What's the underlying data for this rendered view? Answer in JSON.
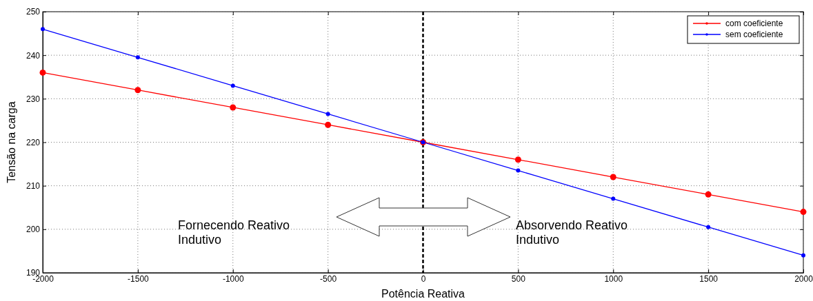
{
  "chart_data": {
    "type": "line",
    "xlabel": "Potência Reativa",
    "ylabel": "Tensão na carga",
    "x": [
      -2000,
      -1500,
      -1000,
      -500,
      0,
      500,
      1000,
      1500,
      2000
    ],
    "series": [
      {
        "name": "com coeficiente",
        "color": "#ff0000",
        "values": [
          236,
          232,
          228,
          224,
          220,
          216,
          212,
          208,
          204
        ]
      },
      {
        "name": "sem coeficiente",
        "color": "#0000ff",
        "values": [
          246,
          239.5,
          233,
          226.5,
          220,
          213.5,
          207,
          200.5,
          194
        ]
      }
    ],
    "xlim": [
      -2000,
      2000
    ],
    "xticks": [
      -2000,
      -1500,
      -1000,
      -500,
      0,
      500,
      1000,
      1500,
      2000
    ],
    "ylim": [
      190,
      250
    ],
    "yticks": [
      190,
      200,
      210,
      220,
      230,
      240,
      250
    ],
    "grid": true,
    "legend": "top right",
    "marker": "circle",
    "line_style": "solid",
    "ref_lines": [
      {
        "axis": "x",
        "value": 0,
        "color": "#000000",
        "line_style": "dashed"
      }
    ],
    "annotations": [
      "Fornecendo Reativo\nIndutivo",
      "Absorvendo Reativo\nIndutivo"
    ]
  }
}
